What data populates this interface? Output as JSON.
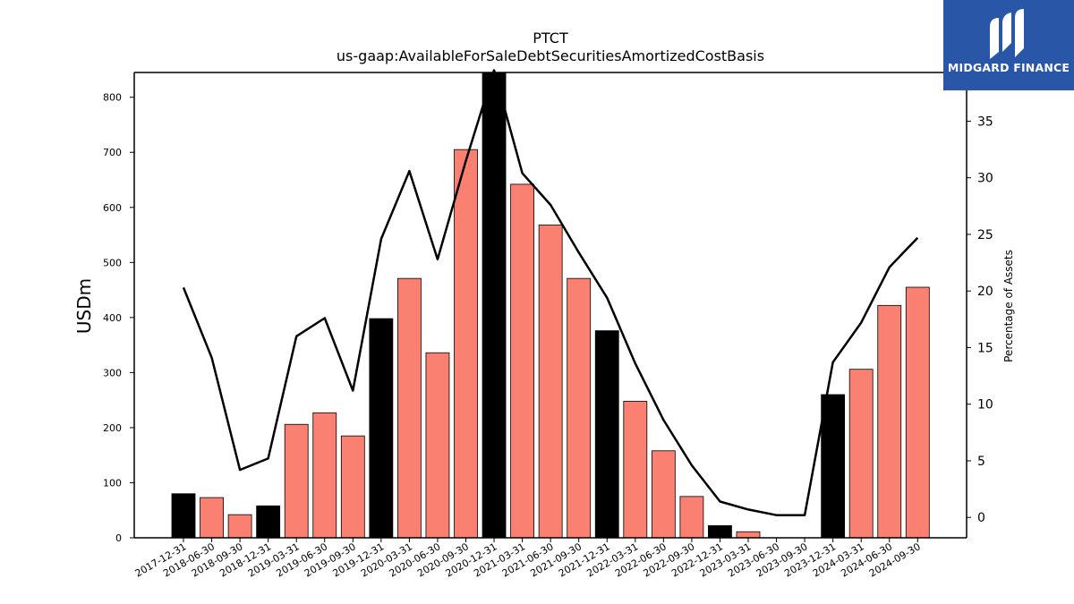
{
  "chart_data": {
    "type": "bar",
    "title": "PTCT",
    "subtitle": "us-gaap:AvailableForSaleDebtSecuritiesAmortizedCostBasis",
    "ylabel": "USDm",
    "ylabel_right": "Percentage of Assets",
    "ylim": [
      0,
      845
    ],
    "ylim_right": [
      -1.8,
      39.3
    ],
    "yticks": [
      0,
      100,
      200,
      300,
      400,
      500,
      600,
      700,
      800
    ],
    "yticks_right": [
      0,
      5,
      10,
      15,
      20,
      25,
      30,
      35
    ],
    "categories": [
      "2017-12-31",
      "2018-06-30",
      "2018-09-30",
      "2018-12-31",
      "2019-03-31",
      "2019-06-30",
      "2019-09-30",
      "2019-12-31",
      "2020-03-31",
      "2020-06-30",
      "2020-09-30",
      "2020-12-31",
      "2021-03-31",
      "2021-06-30",
      "2021-09-30",
      "2021-12-31",
      "2022-03-31",
      "2022-06-30",
      "2022-09-30",
      "2022-12-31",
      "2023-03-31",
      "2023-06-30",
      "2023-09-30",
      "2023-12-31",
      "2024-03-31",
      "2024-06-30",
      "2024-09-30"
    ],
    "series": [
      {
        "type": "bar",
        "values": [
          80,
          73,
          42,
          58,
          206,
          227,
          185,
          398,
          471,
          336,
          705,
          848,
          642,
          568,
          471,
          376,
          248,
          158,
          75,
          22,
          11,
          0,
          0,
          260,
          306,
          422,
          455
        ]
      },
      {
        "type": "line",
        "axis": "right",
        "values": [
          20.3,
          14.1,
          4.2,
          5.2,
          16.0,
          17.6,
          11.2,
          24.6,
          30.6,
          22.8,
          31.5,
          39.5,
          30.4,
          27.6,
          23.4,
          19.4,
          13.6,
          8.6,
          4.6,
          1.4,
          0.7,
          0.2,
          0.2,
          13.7,
          17.2,
          22.1,
          24.7
        ]
      }
    ],
    "bar_colors": {
      "year_end": "#000000",
      "quarter": "#fa8072"
    },
    "line_color": "#000000"
  },
  "logo": {
    "text": "MIDGARD FINANCE"
  }
}
